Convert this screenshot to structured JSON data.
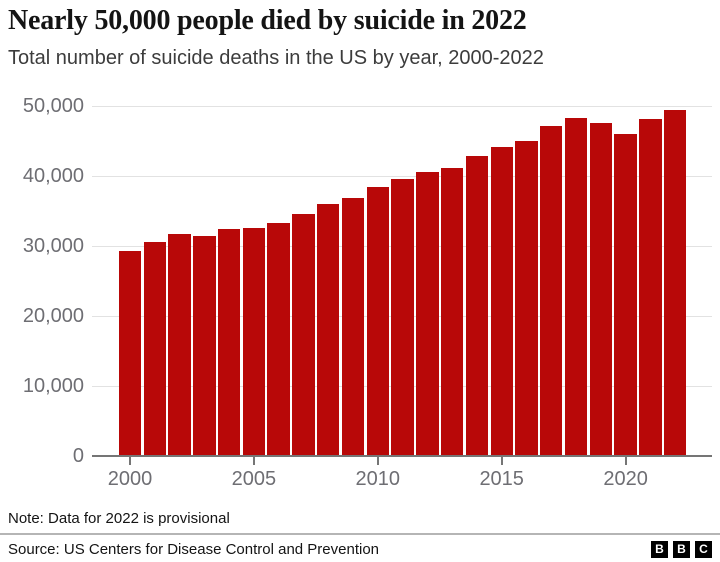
{
  "header": {
    "title": "Nearly 50,000 people died by suicide in 2022",
    "subtitle": "Total number of suicide deaths in the US by year, 2000-2022"
  },
  "chart_data": {
    "type": "bar",
    "title": "Nearly 50,000 people died by suicide in 2022",
    "subtitle": "Total number of suicide deaths in the US by year, 2000-2022",
    "categories": [
      "2000",
      "2001",
      "2002",
      "2003",
      "2004",
      "2005",
      "2006",
      "2007",
      "2008",
      "2009",
      "2010",
      "2011",
      "2012",
      "2013",
      "2014",
      "2015",
      "2016",
      "2017",
      "2018",
      "2019",
      "2020",
      "2021",
      "2022"
    ],
    "values": [
      29350,
      30622,
      31655,
      31484,
      32439,
      32637,
      33300,
      34598,
      36035,
      36909,
      38364,
      39518,
      40600,
      41149,
      42826,
      44193,
      44965,
      47173,
      48344,
      47511,
      45979,
      48183,
      49449
    ],
    "xlabel": "",
    "ylabel": "",
    "ylim": [
      0,
      50000
    ],
    "yticks": [
      0,
      10000,
      20000,
      30000,
      40000,
      50000
    ],
    "ytick_labels": [
      "0",
      "10,000",
      "20,000",
      "30,000",
      "40,000",
      "50,000"
    ],
    "xtick_years": [
      2000,
      2005,
      2010,
      2015,
      2020
    ],
    "xtick_labels": [
      "2000",
      "2005",
      "2010",
      "2015",
      "2020"
    ],
    "bar_color": "#b80808",
    "grid": true,
    "legend_position": "none"
  },
  "footer": {
    "note": "Note: Data for 2022 is provisional",
    "source": "Source: US Centers for Disease Control and Prevention",
    "logo_letters": [
      "B",
      "B",
      "C"
    ]
  }
}
